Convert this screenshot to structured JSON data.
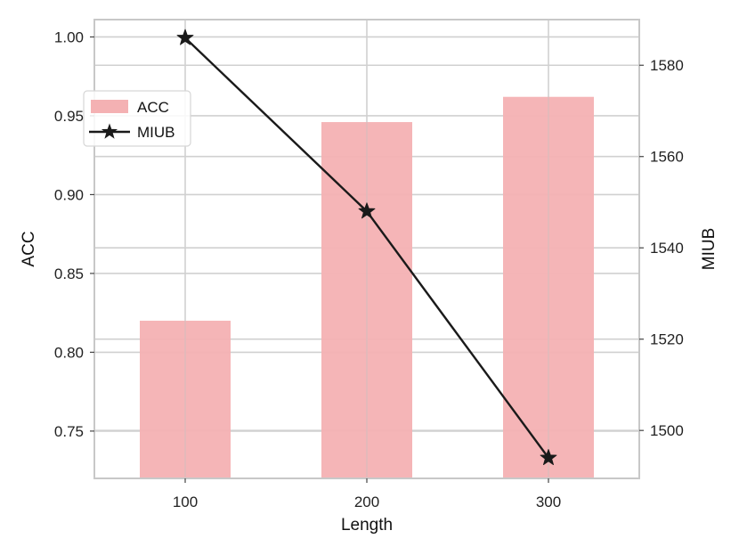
{
  "chart_data": {
    "type": "bar",
    "categories": [
      "100",
      "200",
      "300"
    ],
    "xlabel": "Length",
    "series": [
      {
        "name": "ACC",
        "kind": "bar",
        "axis": "left",
        "color": "#f4b1b3",
        "values": [
          0.82,
          0.946,
          0.962
        ]
      },
      {
        "name": "MIUB",
        "kind": "line",
        "axis": "right",
        "color": "#1a1a1a",
        "marker": "star",
        "values": [
          1586,
          1548,
          1494
        ]
      }
    ],
    "left_axis": {
      "label": "ACC",
      "ylim": [
        0.72,
        1.011
      ],
      "ticks": [
        0.75,
        0.8,
        0.85,
        0.9,
        0.95,
        1.0
      ],
      "tick_labels": [
        "0.75",
        "0.80",
        "0.85",
        "0.90",
        "0.95",
        "1.00"
      ]
    },
    "right_axis": {
      "label": "MIUB",
      "ylim": [
        1489.5,
        1590
      ],
      "ticks": [
        1500,
        1520,
        1540,
        1560,
        1580
      ],
      "tick_labels": [
        "1500",
        "1520",
        "1540",
        "1560",
        "1580"
      ]
    },
    "grid": true,
    "legend_position": "upper-left",
    "colors": {
      "grid": "#d0d0d0",
      "spine": "#c8c8c8"
    }
  }
}
